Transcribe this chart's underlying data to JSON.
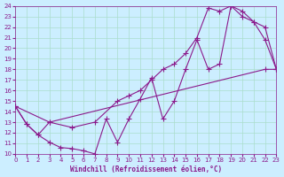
{
  "xlabel": "Windchill (Refroidissement éolien,°C)",
  "ylabel": "",
  "bg_color": "#cceeff",
  "line_color": "#8b1a8b",
  "grid_color": "#aaddcc",
  "xlim": [
    0,
    23
  ],
  "ylim": [
    10,
    24
  ],
  "xticks": [
    0,
    1,
    2,
    3,
    4,
    5,
    6,
    7,
    8,
    9,
    10,
    11,
    12,
    13,
    14,
    15,
    16,
    17,
    18,
    19,
    20,
    21,
    22,
    23
  ],
  "yticks": [
    10,
    11,
    12,
    13,
    14,
    15,
    16,
    17,
    18,
    19,
    20,
    21,
    22,
    23,
    24
  ],
  "line1_x": [
    0,
    1,
    2,
    3,
    4,
    5,
    6,
    7,
    8,
    9,
    10,
    11,
    12,
    13,
    14,
    15,
    16,
    17,
    18,
    19,
    20,
    21,
    22,
    23
  ],
  "line1_y": [
    14.5,
    12.8,
    11.8,
    11.1,
    10.6,
    10.5,
    10.3,
    10.0,
    13.3,
    11.1,
    13.3,
    15.2,
    17.2,
    13.3,
    15.0,
    18.0,
    20.8,
    18.0,
    18.5,
    24.0,
    23.5,
    22.5,
    20.8,
    18.0
  ],
  "line2_x": [
    0,
    1,
    2,
    3,
    22,
    23
  ],
  "line2_y": [
    14.5,
    12.8,
    11.8,
    13.0,
    18.0,
    18.0
  ],
  "line3_x": [
    0,
    3,
    5,
    7,
    9,
    10,
    11,
    12,
    13,
    14,
    15,
    16,
    17,
    18,
    19,
    20,
    21,
    22,
    23
  ],
  "line3_y": [
    14.5,
    13.0,
    12.5,
    13.0,
    15.0,
    15.5,
    16.0,
    17.0,
    18.0,
    18.5,
    19.5,
    21.0,
    23.8,
    23.5,
    24.0,
    23.0,
    22.5,
    22.0,
    18.0
  ]
}
